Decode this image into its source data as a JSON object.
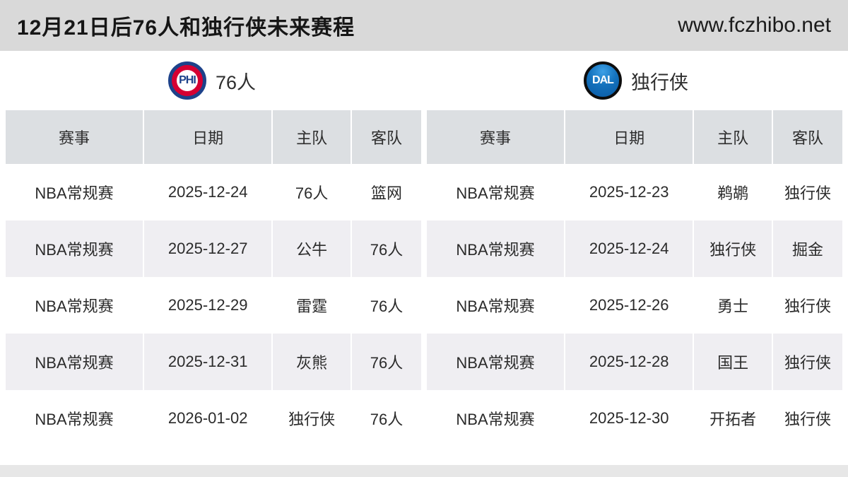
{
  "header": {
    "title": "12月21日后76人和独行侠未来赛程",
    "site_url": "www.fczhibo.net"
  },
  "teams": {
    "left": {
      "abbr": "PHI",
      "name": "76人"
    },
    "right": {
      "abbr": "DAL",
      "name": "独行侠"
    }
  },
  "columns": [
    "赛事",
    "日期",
    "主队",
    "客队"
  ],
  "left": {
    "rows": [
      [
        "NBA常规赛",
        "2025-12-24",
        "76人",
        "篮网"
      ],
      [
        "NBA常规赛",
        "2025-12-27",
        "公牛",
        "76人"
      ],
      [
        "NBA常规赛",
        "2025-12-29",
        "雷霆",
        "76人"
      ],
      [
        "NBA常规赛",
        "2025-12-31",
        "灰熊",
        "76人"
      ],
      [
        "NBA常规赛",
        "2026-01-02",
        "独行侠",
        "76人"
      ]
    ]
  },
  "right": {
    "rows": [
      [
        "NBA常规赛",
        "2025-12-23",
        "鹈鹕",
        "独行侠"
      ],
      [
        "NBA常规赛",
        "2025-12-24",
        "独行侠",
        "掘金"
      ],
      [
        "NBA常规赛",
        "2025-12-26",
        "勇士",
        "独行侠"
      ],
      [
        "NBA常规赛",
        "2025-12-28",
        "国王",
        "独行侠"
      ],
      [
        "NBA常规赛",
        "2025-12-30",
        "开拓者",
        "独行侠"
      ]
    ]
  },
  "colors": {
    "title_bar": "#d9d9d9",
    "header_row": "#dcdfe2",
    "stripe_row": "#efeef2",
    "phi_blue": "#1d428a",
    "phi_red": "#d50032",
    "dal_blue": "#0a5aa4",
    "footer_strip": "#e7e7e7"
  }
}
